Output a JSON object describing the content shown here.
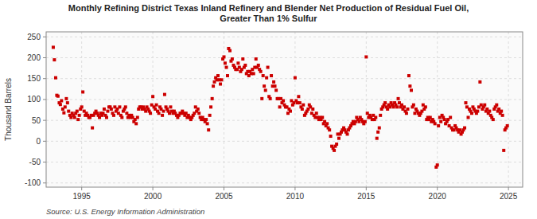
{
  "chart_data": {
    "type": "scatter",
    "title": "Monthly Refining District Texas Inland Refinery and Blender Net Production of Residual Fuel Oil,\nGreater Than 1% Sulfur",
    "y_label": "Thousand Barrels",
    "annotations": [
      "Source: U.S. Energy Information Administration"
    ],
    "color": "#CC0000",
    "marker": "square",
    "grid": true,
    "xlim": [
      1992.5,
      2026.0
    ],
    "ylim": [
      -110,
      262
    ],
    "xticks": [
      1995,
      2000,
      2005,
      2010,
      2015,
      2020,
      2025
    ],
    "yticks": [
      -100,
      -50,
      0,
      50,
      100,
      150,
      200,
      250
    ],
    "x": [
      1993.0,
      1993.08,
      1993.17,
      1993.25,
      1993.33,
      1993.42,
      1993.5,
      1993.58,
      1993.67,
      1993.75,
      1993.83,
      1993.92,
      1994.0,
      1994.08,
      1994.17,
      1994.25,
      1994.33,
      1994.42,
      1994.5,
      1994.58,
      1994.67,
      1994.75,
      1994.83,
      1994.92,
      1995.0,
      1995.08,
      1995.17,
      1995.25,
      1995.33,
      1995.42,
      1995.5,
      1995.58,
      1995.67,
      1995.75,
      1995.83,
      1995.92,
      1996.0,
      1996.08,
      1996.17,
      1996.25,
      1996.33,
      1996.42,
      1996.5,
      1996.58,
      1996.67,
      1996.75,
      1996.83,
      1996.92,
      1997.0,
      1997.08,
      1997.17,
      1997.25,
      1997.33,
      1997.42,
      1997.5,
      1997.58,
      1997.67,
      1997.75,
      1997.83,
      1997.92,
      1998.0,
      1998.08,
      1998.17,
      1998.25,
      1998.33,
      1998.42,
      1998.5,
      1998.58,
      1998.67,
      1998.75,
      1998.83,
      1998.92,
      1999.0,
      1999.08,
      1999.17,
      1999.25,
      1999.33,
      1999.42,
      1999.5,
      1999.58,
      1999.67,
      1999.75,
      1999.83,
      1999.92,
      2000.0,
      2000.08,
      2000.17,
      2000.25,
      2000.33,
      2000.42,
      2000.5,
      2000.58,
      2000.67,
      2000.75,
      2000.83,
      2000.92,
      2001.0,
      2001.08,
      2001.17,
      2001.25,
      2001.33,
      2001.42,
      2001.5,
      2001.58,
      2001.67,
      2001.75,
      2001.83,
      2001.92,
      2002.0,
      2002.08,
      2002.17,
      2002.25,
      2002.33,
      2002.42,
      2002.5,
      2002.58,
      2002.67,
      2002.75,
      2002.83,
      2002.92,
      2003.0,
      2003.08,
      2003.17,
      2003.25,
      2003.33,
      2003.42,
      2003.5,
      2003.58,
      2003.67,
      2003.75,
      2003.83,
      2003.92,
      2004.0,
      2004.08,
      2004.17,
      2004.25,
      2004.33,
      2004.42,
      2004.5,
      2004.58,
      2004.67,
      2004.75,
      2004.83,
      2004.92,
      2005.0,
      2005.08,
      2005.17,
      2005.25,
      2005.33,
      2005.42,
      2005.5,
      2005.58,
      2005.67,
      2005.75,
      2005.83,
      2005.92,
      2006.0,
      2006.08,
      2006.17,
      2006.25,
      2006.33,
      2006.42,
      2006.5,
      2006.58,
      2006.67,
      2006.75,
      2006.83,
      2006.92,
      2007.0,
      2007.08,
      2007.17,
      2007.25,
      2007.33,
      2007.42,
      2007.5,
      2007.58,
      2007.67,
      2007.75,
      2007.83,
      2007.92,
      2008.0,
      2008.08,
      2008.17,
      2008.25,
      2008.33,
      2008.42,
      2008.5,
      2008.58,
      2008.67,
      2008.75,
      2008.83,
      2008.92,
      2009.0,
      2009.08,
      2009.17,
      2009.25,
      2009.33,
      2009.42,
      2009.5,
      2009.58,
      2009.67,
      2009.75,
      2009.83,
      2009.92,
      2010.0,
      2010.08,
      2010.17,
      2010.25,
      2010.33,
      2010.42,
      2010.5,
      2010.58,
      2010.67,
      2010.75,
      2010.83,
      2010.92,
      2011.0,
      2011.08,
      2011.17,
      2011.25,
      2011.33,
      2011.42,
      2011.5,
      2011.58,
      2011.67,
      2011.75,
      2011.83,
      2011.92,
      2012.0,
      2012.08,
      2012.17,
      2012.25,
      2012.33,
      2012.42,
      2012.5,
      2012.58,
      2012.67,
      2012.75,
      2012.83,
      2012.92,
      2013.0,
      2013.08,
      2013.17,
      2013.25,
      2013.33,
      2013.42,
      2013.5,
      2013.58,
      2013.67,
      2013.75,
      2013.83,
      2013.92,
      2014.0,
      2014.08,
      2014.17,
      2014.25,
      2014.33,
      2014.42,
      2014.5,
      2014.58,
      2014.67,
      2014.75,
      2014.83,
      2014.92,
      2015.0,
      2015.08,
      2015.17,
      2015.25,
      2015.33,
      2015.42,
      2015.5,
      2015.58,
      2015.67,
      2015.75,
      2015.83,
      2015.92,
      2016.0,
      2016.08,
      2016.17,
      2016.25,
      2016.33,
      2016.42,
      2016.5,
      2016.58,
      2016.67,
      2016.75,
      2016.83,
      2016.92,
      2017.0,
      2017.08,
      2017.17,
      2017.25,
      2017.33,
      2017.42,
      2017.5,
      2017.58,
      2017.67,
      2017.75,
      2017.83,
      2017.92,
      2018.0,
      2018.08,
      2018.17,
      2018.25,
      2018.33,
      2018.42,
      2018.5,
      2018.58,
      2018.67,
      2018.75,
      2018.83,
      2018.92,
      2019.0,
      2019.08,
      2019.17,
      2019.25,
      2019.33,
      2019.42,
      2019.5,
      2019.58,
      2019.67,
      2019.75,
      2019.83,
      2019.92,
      2020.0,
      2020.08,
      2020.17,
      2020.25,
      2020.33,
      2020.42,
      2020.5,
      2020.58,
      2020.67,
      2020.75,
      2020.83,
      2020.92,
      2021.0,
      2021.08,
      2021.17,
      2021.25,
      2021.33,
      2021.42,
      2021.5,
      2021.58,
      2021.67,
      2021.75,
      2021.83,
      2021.92,
      2022.0,
      2022.08,
      2022.17,
      2022.25,
      2022.33,
      2022.42,
      2022.5,
      2022.58,
      2022.67,
      2022.75,
      2022.83,
      2022.92,
      2023.0,
      2023.08,
      2023.17,
      2023.25,
      2023.33,
      2023.42,
      2023.5,
      2023.58,
      2023.67,
      2023.75,
      2023.83,
      2023.92,
      2024.0,
      2024.08,
      2024.17,
      2024.25,
      2024.33,
      2024.42,
      2024.5,
      2024.58,
      2024.67,
      2024.75,
      2024.83,
      2024.92
    ],
    "values": [
      225,
      195,
      152,
      110,
      108,
      92,
      88,
      97,
      77,
      68,
      82,
      102,
      92,
      72,
      62,
      57,
      67,
      62,
      57,
      67,
      72,
      52,
      62,
      77,
      82,
      118,
      72,
      62,
      67,
      62,
      57,
      57,
      62,
      32,
      62,
      67,
      72,
      67,
      62,
      57,
      67,
      62,
      67,
      77,
      62,
      57,
      72,
      82,
      82,
      77,
      67,
      62,
      82,
      72,
      77,
      67,
      82,
      62,
      57,
      72,
      77,
      82,
      67,
      57,
      62,
      57,
      62,
      57,
      47,
      52,
      42,
      57,
      77,
      82,
      82,
      77,
      82,
      77,
      72,
      82,
      77,
      72,
      67,
      87,
      107,
      82,
      77,
      87,
      72,
      67,
      82,
      77,
      62,
      72,
      112,
      82,
      77,
      72,
      67,
      82,
      72,
      67,
      72,
      67,
      62,
      57,
      62,
      67,
      67,
      72,
      67,
      62,
      67,
      57,
      62,
      57,
      52,
      57,
      62,
      67,
      82,
      72,
      77,
      67,
      57,
      52,
      57,
      52,
      47,
      52,
      42,
      27,
      62,
      82,
      102,
      132,
      142,
      152,
      147,
      157,
      147,
      137,
      147,
      197,
      202,
      187,
      177,
      157,
      222,
      217,
      192,
      197,
      182,
      177,
      172,
      172,
      187,
      177,
      167,
      172,
      197,
      177,
      182,
      162,
      167,
      157,
      167,
      162,
      172,
      162,
      177,
      197,
      177,
      182,
      172,
      167,
      102,
      157,
      132,
      122,
      152,
      177,
      107,
      102,
      157,
      132,
      142,
      132,
      122,
      102,
      102,
      82,
      102,
      92,
      97,
      87,
      82,
      82,
      67,
      77,
      72,
      97,
      87,
      92,
      152,
      97,
      92,
      107,
      92,
      82,
      77,
      87,
      62,
      67,
      72,
      77,
      87,
      82,
      67,
      77,
      62,
      57,
      67,
      57,
      52,
      57,
      52,
      57,
      42,
      47,
      37,
      42,
      32,
      27,
      12,
      -12,
      -17,
      -22,
      -12,
      -7,
      17,
      7,
      17,
      22,
      27,
      32,
      27,
      22,
      17,
      27,
      32,
      37,
      42,
      47,
      42,
      47,
      57,
      52,
      47,
      57,
      52,
      47,
      42,
      47,
      202,
      67,
      57,
      62,
      57,
      52,
      62,
      52,
      57,
      7,
      22,
      32,
      62,
      77,
      82,
      87,
      92,
      82,
      77,
      87,
      82,
      92,
      87,
      82,
      92,
      87,
      82,
      102,
      92,
      82,
      87,
      77,
      82,
      72,
      67,
      77,
      157,
      132,
      122,
      82,
      87,
      67,
      77,
      72,
      67,
      62,
      67,
      72,
      87,
      77,
      82,
      52,
      57,
      52,
      57,
      47,
      52,
      47,
      42,
      -62,
      -57,
      37,
      57,
      47,
      62,
      57,
      52,
      42,
      47,
      52,
      37,
      57,
      32,
      27,
      27,
      37,
      32,
      27,
      22,
      27,
      17,
      22,
      27,
      32,
      92,
      82,
      57,
      77,
      72,
      67,
      82,
      77,
      72,
      67,
      72,
      82,
      142,
      87,
      77,
      82,
      87,
      72,
      77,
      67,
      72,
      62,
      57,
      52,
      77,
      82,
      87,
      72,
      77,
      67,
      72,
      62,
      -22,
      27,
      32,
      37
    ]
  }
}
